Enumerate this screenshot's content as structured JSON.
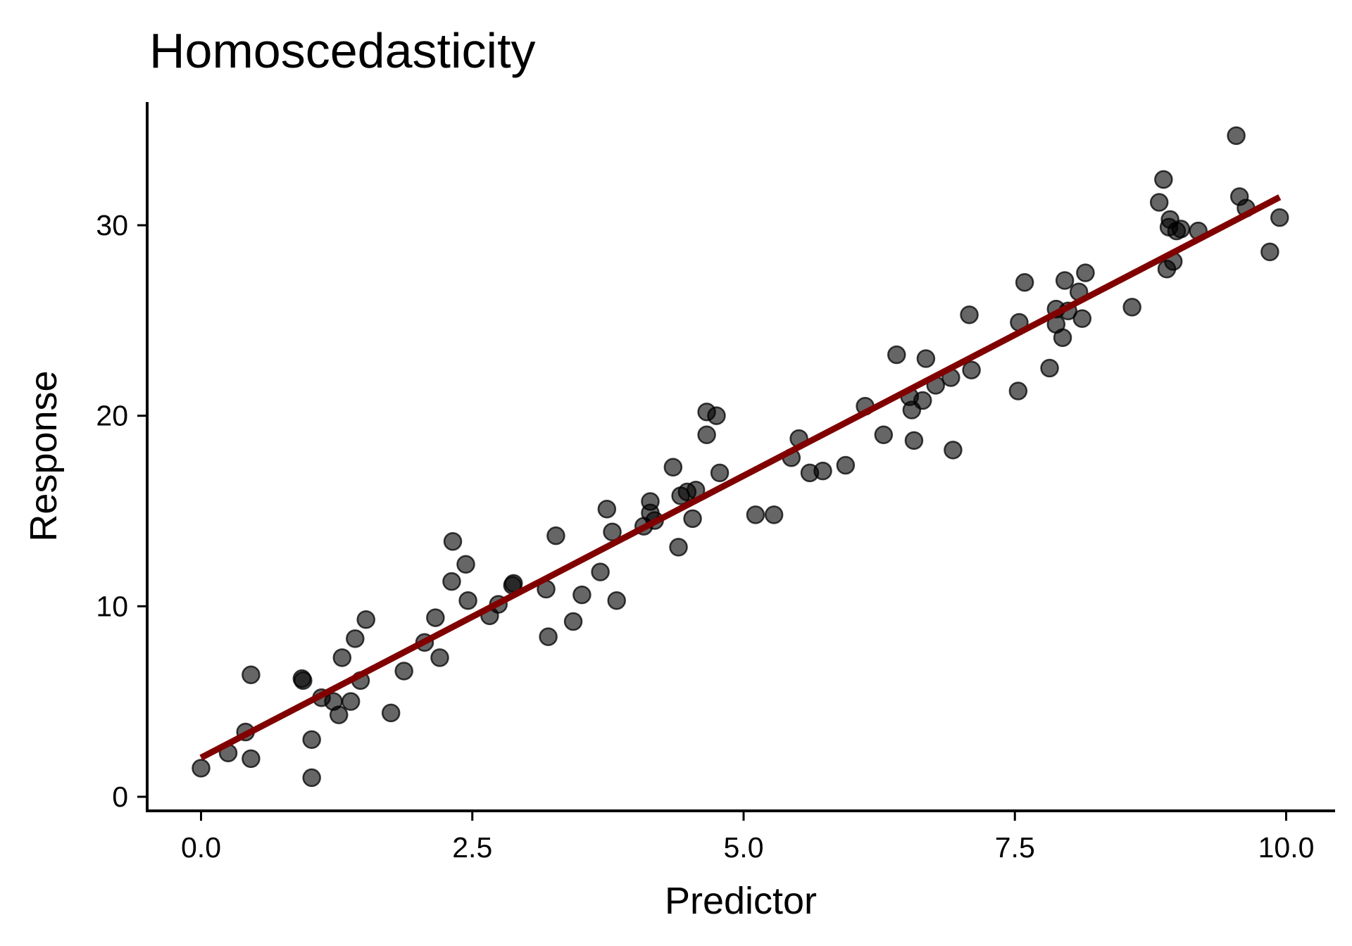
{
  "chart_data": {
    "type": "scatter",
    "title": "Homoscedasticity",
    "xlabel": "Predictor",
    "ylabel": "Response",
    "xlim": [
      -0.5,
      10.45
    ],
    "ylim": [
      -0.6,
      36.5
    ],
    "x_ticks": [
      0,
      2.5,
      5,
      7.5,
      10
    ],
    "x_tick_labels": [
      "0.0",
      "2.5",
      "5.0",
      "7.5",
      "10.0"
    ],
    "y_ticks": [
      0,
      10,
      20,
      30
    ],
    "y_tick_labels": [
      "0",
      "10",
      "20",
      "30"
    ],
    "grid": false,
    "point_color": "#000000",
    "point_alpha": 0.6,
    "line_color": "#800000",
    "fit_line": {
      "intercept": 2.05,
      "slope": 2.96,
      "x_range": [
        0.0,
        9.94
      ]
    },
    "points": [
      [
        0.0,
        1.5
      ],
      [
        0.25,
        2.3
      ],
      [
        0.41,
        3.4
      ],
      [
        0.46,
        6.4
      ],
      [
        0.46,
        2.0
      ],
      [
        0.93,
        6.2
      ],
      [
        0.94,
        6.1
      ],
      [
        1.02,
        3.0
      ],
      [
        1.02,
        1.0
      ],
      [
        1.11,
        5.2
      ],
      [
        1.22,
        5.0
      ],
      [
        1.27,
        4.3
      ],
      [
        1.3,
        7.3
      ],
      [
        1.38,
        5.0
      ],
      [
        1.42,
        8.3
      ],
      [
        1.47,
        6.1
      ],
      [
        1.52,
        9.3
      ],
      [
        1.75,
        4.4
      ],
      [
        1.87,
        6.6
      ],
      [
        2.06,
        8.1
      ],
      [
        2.16,
        9.4
      ],
      [
        2.2,
        7.3
      ],
      [
        2.31,
        11.3
      ],
      [
        2.32,
        13.4
      ],
      [
        2.44,
        12.2
      ],
      [
        2.46,
        10.3
      ],
      [
        2.66,
        9.5
      ],
      [
        2.74,
        10.1
      ],
      [
        2.87,
        11.1
      ],
      [
        2.88,
        11.2
      ],
      [
        3.18,
        10.9
      ],
      [
        3.2,
        8.4
      ],
      [
        3.27,
        13.7
      ],
      [
        3.43,
        9.2
      ],
      [
        3.51,
        10.6
      ],
      [
        3.68,
        11.8
      ],
      [
        3.74,
        15.1
      ],
      [
        3.79,
        13.9
      ],
      [
        3.83,
        10.3
      ],
      [
        4.08,
        14.2
      ],
      [
        4.14,
        15.5
      ],
      [
        4.14,
        14.9
      ],
      [
        4.18,
        14.5
      ],
      [
        4.35,
        17.3
      ],
      [
        4.4,
        13.1
      ],
      [
        4.42,
        15.8
      ],
      [
        4.48,
        16.0
      ],
      [
        4.53,
        14.6
      ],
      [
        4.56,
        16.1
      ],
      [
        4.66,
        20.2
      ],
      [
        4.66,
        19.0
      ],
      [
        4.75,
        20.0
      ],
      [
        4.78,
        17.0
      ],
      [
        5.11,
        14.8
      ],
      [
        5.28,
        14.8
      ],
      [
        5.44,
        17.8
      ],
      [
        5.51,
        18.8
      ],
      [
        5.61,
        17.0
      ],
      [
        5.73,
        17.1
      ],
      [
        5.94,
        17.4
      ],
      [
        6.12,
        20.5
      ],
      [
        6.29,
        19.0
      ],
      [
        6.41,
        23.2
      ],
      [
        6.53,
        21.0
      ],
      [
        6.55,
        20.3
      ],
      [
        6.57,
        18.7
      ],
      [
        6.65,
        20.8
      ],
      [
        6.68,
        23.0
      ],
      [
        6.77,
        21.6
      ],
      [
        6.91,
        22.0
      ],
      [
        6.93,
        18.2
      ],
      [
        7.08,
        25.3
      ],
      [
        7.1,
        22.4
      ],
      [
        7.53,
        21.3
      ],
      [
        7.54,
        24.9
      ],
      [
        7.59,
        27.0
      ],
      [
        7.82,
        22.5
      ],
      [
        7.88,
        25.6
      ],
      [
        7.88,
        24.8
      ],
      [
        7.94,
        24.1
      ],
      [
        7.96,
        27.1
      ],
      [
        7.99,
        25.5
      ],
      [
        8.09,
        26.5
      ],
      [
        8.12,
        25.1
      ],
      [
        8.15,
        27.5
      ],
      [
        8.58,
        25.7
      ],
      [
        8.83,
        31.2
      ],
      [
        8.87,
        32.4
      ],
      [
        8.9,
        27.7
      ],
      [
        8.93,
        30.3
      ],
      [
        8.92,
        29.9
      ],
      [
        8.96,
        28.1
      ],
      [
        8.99,
        29.7
      ],
      [
        9.03,
        29.8
      ],
      [
        9.19,
        29.7
      ],
      [
        9.54,
        34.7
      ],
      [
        9.57,
        31.5
      ],
      [
        9.63,
        30.9
      ],
      [
        9.85,
        28.6
      ],
      [
        9.94,
        30.4
      ]
    ]
  }
}
